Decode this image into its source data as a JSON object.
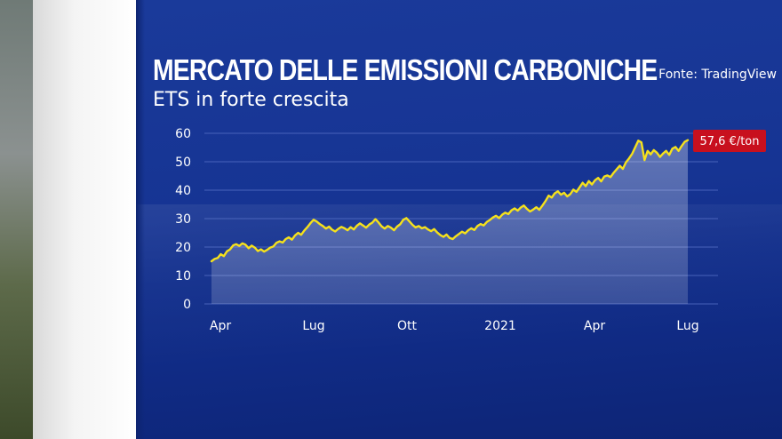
{
  "header": {
    "title": "MERCATO DELLE EMISSIONI CARBONICHE",
    "subtitle": "ETS in forte crescita",
    "source": "Fonte: TradingView"
  },
  "colors": {
    "panel": "#163493",
    "line": "#f5e11c",
    "badge": "#c8101e",
    "gridline": "#5a73c8",
    "text": "#ffffff"
  },
  "chart_data": {
    "type": "area",
    "title": "MERCATO DELLE EMISSIONI CARBONICHE",
    "subtitle": "ETS in forte crescita",
    "xlabel": "",
    "ylabel": "",
    "ylim": [
      0,
      60
    ],
    "y_ticks": [
      0,
      10,
      20,
      30,
      40,
      50,
      60
    ],
    "x_tick_labels": [
      "Apr",
      "Lug",
      "Ott",
      "2021",
      "Apr",
      "Lug"
    ],
    "grid": true,
    "last_value_label": "57,6 €/ton",
    "series": [
      {
        "values": [
          15.0,
          15.8,
          16.2,
          17.5,
          16.8,
          18.5,
          19.2,
          20.6,
          21.0,
          20.4,
          21.3,
          20.8,
          19.6,
          20.5,
          19.8,
          18.6,
          19.2,
          18.4,
          19.0,
          19.8,
          20.2,
          21.5,
          22.0,
          21.6,
          22.8,
          23.4,
          22.6,
          24.1,
          25.0,
          24.3,
          25.8,
          27.0,
          28.4,
          29.6,
          29.0,
          28.1,
          27.4,
          26.5,
          27.2,
          26.1,
          25.5,
          26.4,
          27.1,
          26.6,
          25.9,
          27.0,
          26.2,
          27.5,
          28.3,
          27.6,
          26.8,
          27.9,
          28.6,
          29.8,
          28.7,
          27.3,
          26.5,
          27.4,
          26.8,
          25.9,
          27.2,
          28.0,
          29.6,
          30.2,
          29.0,
          27.8,
          26.9,
          27.4,
          26.6,
          27.0,
          26.2,
          25.6,
          26.3,
          25.1,
          24.2,
          23.6,
          24.4,
          23.2,
          22.8,
          23.8,
          24.6,
          25.4,
          24.8,
          25.9,
          26.6,
          26.0,
          27.4,
          28.1,
          27.6,
          28.8,
          29.5,
          30.4,
          31.0,
          30.2,
          31.4,
          32.1,
          31.6,
          32.9,
          33.6,
          32.8,
          33.9,
          34.6,
          33.4,
          32.5,
          33.2,
          34.0,
          33.1,
          34.6,
          36.2,
          38.1,
          37.4,
          38.9,
          39.6,
          38.4,
          39.1,
          37.8,
          38.6,
          40.2,
          39.4,
          41.0,
          42.6,
          41.4,
          43.2,
          42.0,
          43.5,
          44.3,
          43.1,
          44.8,
          45.2,
          44.6,
          46.1,
          47.3,
          48.6,
          47.5,
          49.8,
          51.2,
          52.8,
          55.1,
          57.4,
          56.8,
          50.6,
          53.8,
          52.6,
          54.1,
          53.2,
          51.7,
          52.9,
          53.8,
          52.4,
          54.6,
          55.2,
          53.8,
          55.5,
          57.0,
          57.6
        ]
      }
    ]
  }
}
